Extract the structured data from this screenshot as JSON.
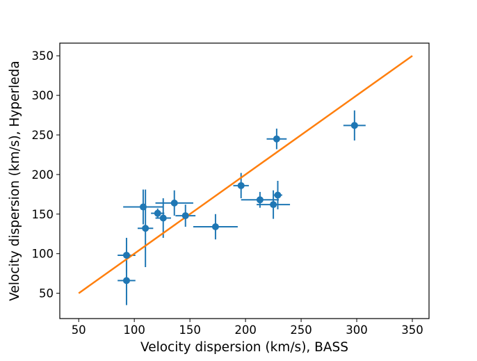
{
  "chart_data": {
    "type": "scatter",
    "title": "",
    "xlabel": "Velocity dispersion (km/s), BASS",
    "ylabel": "Velocity dispersion (km/s), Hyperleda",
    "xlim": [
      33,
      365
    ],
    "ylim": [
      18,
      366
    ],
    "xticks": [
      50,
      100,
      150,
      200,
      250,
      300,
      350
    ],
    "yticks": [
      50,
      100,
      150,
      200,
      250,
      300,
      350
    ],
    "grid": false,
    "legend": "none",
    "series": [
      {
        "kind": "errorbar",
        "color": "#1f77b4",
        "points": [
          {
            "x": 93,
            "y": 98,
            "xerr": 8,
            "yerr": 22
          },
          {
            "x": 93,
            "y": 66,
            "xerr": 8,
            "yerr": 31
          },
          {
            "x": 108,
            "y": 159,
            "xerr": 18,
            "yerr": 22
          },
          {
            "x": 110,
            "y": 132,
            "xerr": 7,
            "yerr": 49
          },
          {
            "x": 121,
            "y": 151,
            "xerr": 6,
            "yerr": 6
          },
          {
            "x": 126,
            "y": 145,
            "xerr": 7,
            "yerr": 25
          },
          {
            "x": 136,
            "y": 164,
            "xerr": 17,
            "yerr": 16
          },
          {
            "x": 146,
            "y": 148,
            "xerr": 9,
            "yerr": 14
          },
          {
            "x": 173,
            "y": 134,
            "xerr": 20,
            "yerr": 16
          },
          {
            "x": 196,
            "y": 186,
            "xerr": 7,
            "yerr": 16
          },
          {
            "x": 213,
            "y": 168,
            "xerr": 17,
            "yerr": 10
          },
          {
            "x": 225,
            "y": 162,
            "xerr": 15,
            "yerr": 18
          },
          {
            "x": 228,
            "y": 245,
            "xerr": 9,
            "yerr": 13
          },
          {
            "x": 229,
            "y": 174,
            "xerr": 4,
            "yerr": 18
          },
          {
            "x": 298,
            "y": 262,
            "xerr": 10,
            "yerr": 19
          }
        ]
      },
      {
        "kind": "line",
        "color": "#ff7f0e",
        "x": [
          50,
          350
        ],
        "y": [
          50,
          350
        ]
      }
    ]
  }
}
